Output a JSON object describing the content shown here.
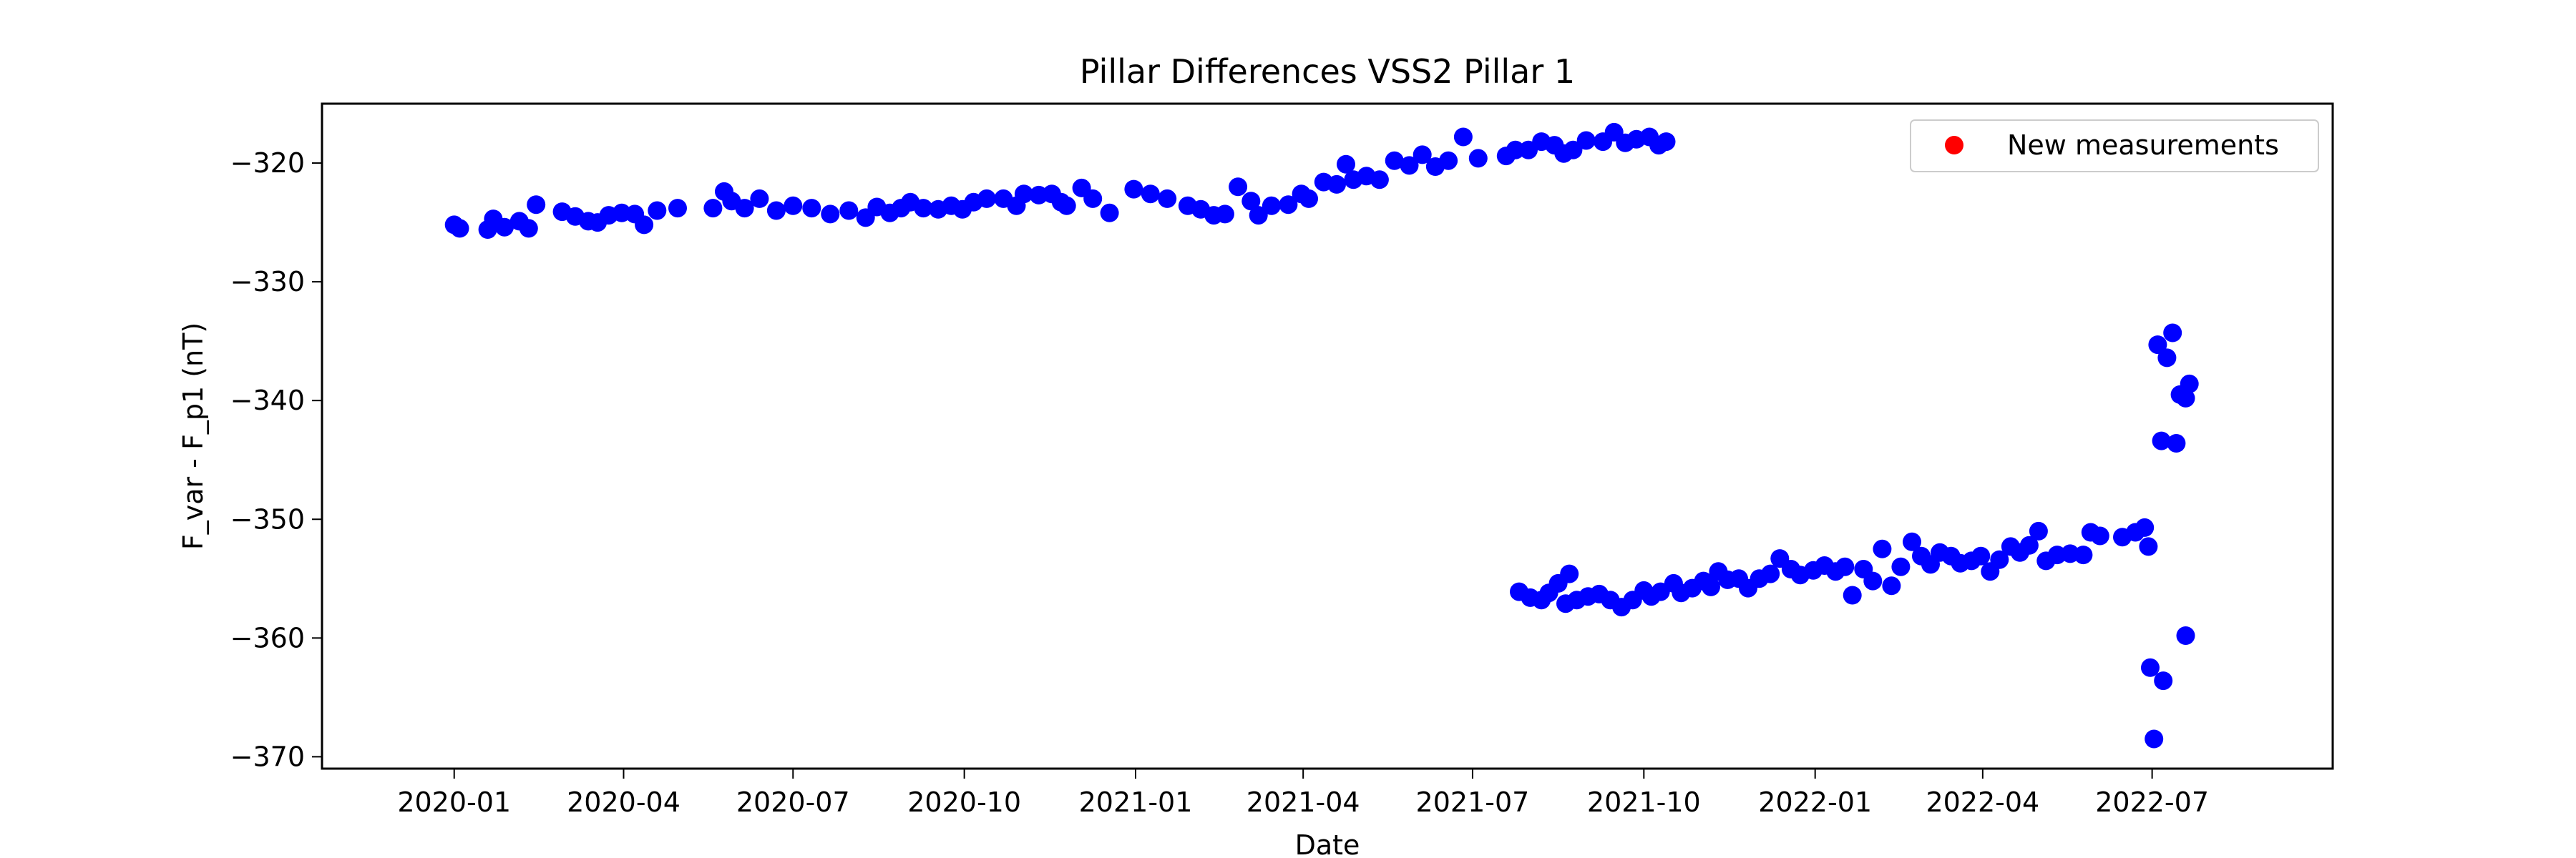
{
  "chart_data": {
    "type": "scatter",
    "title": "Pillar Differences VSS2 Pillar 1",
    "xlabel": "Date",
    "ylabel": "F_var - F_p1 (nT)",
    "xlim": [
      "2019-10-22",
      "2022-10-06"
    ],
    "ylim": [
      -371,
      -315
    ],
    "x_ticks": [
      "2020-01-01",
      "2020-04-01",
      "2020-07-01",
      "2020-10-01",
      "2021-01-01",
      "2021-04-01",
      "2021-07-01",
      "2021-10-01",
      "2022-01-01",
      "2022-04-01",
      "2022-07-01"
    ],
    "x_tick_labels": [
      "2020-01",
      "2020-04",
      "2020-07",
      "2020-10",
      "2021-01",
      "2021-04",
      "2021-07",
      "2021-10",
      "2022-01",
      "2022-04",
      "2022-07"
    ],
    "y_ticks": [
      -320,
      -330,
      -340,
      -350,
      -360,
      -370
    ],
    "y_tick_labels": [
      "−320",
      "−330",
      "−340",
      "−350",
      "−360",
      "−370"
    ],
    "grid": false,
    "legend": {
      "position": "top-right",
      "entries": [
        {
          "label": "New measurements",
          "color": "#ff0000"
        }
      ]
    },
    "series": [
      {
        "color": "#0000ff",
        "points": [
          [
            "2020-01-01",
            -325.2
          ],
          [
            "2020-01-04",
            -325.5
          ],
          [
            "2020-01-19",
            -325.6
          ],
          [
            "2020-01-22",
            -324.7
          ],
          [
            "2020-01-28",
            -325.4
          ],
          [
            "2020-02-05",
            -324.9
          ],
          [
            "2020-02-10",
            -325.5
          ],
          [
            "2020-02-14",
            -323.5
          ],
          [
            "2020-02-28",
            -324.1
          ],
          [
            "2020-03-06",
            -324.5
          ],
          [
            "2020-03-13",
            -324.9
          ],
          [
            "2020-03-18",
            -325.0
          ],
          [
            "2020-03-24",
            -324.4
          ],
          [
            "2020-03-31",
            -324.2
          ],
          [
            "2020-04-07",
            -324.3
          ],
          [
            "2020-04-12",
            -325.2
          ],
          [
            "2020-04-19",
            -324.0
          ],
          [
            "2020-04-30",
            -323.8
          ],
          [
            "2020-05-19",
            -323.8
          ],
          [
            "2020-05-25",
            -322.4
          ],
          [
            "2020-05-29",
            -323.2
          ],
          [
            "2020-06-05",
            -323.8
          ],
          [
            "2020-06-13",
            -323.0
          ],
          [
            "2020-06-22",
            -324.0
          ],
          [
            "2020-07-01",
            -323.6
          ],
          [
            "2020-07-11",
            -323.8
          ],
          [
            "2020-07-21",
            -324.3
          ],
          [
            "2020-07-31",
            -324.0
          ],
          [
            "2020-08-09",
            -324.6
          ],
          [
            "2020-08-15",
            -323.7
          ],
          [
            "2020-08-22",
            -324.2
          ],
          [
            "2020-08-28",
            -323.8
          ],
          [
            "2020-09-02",
            -323.3
          ],
          [
            "2020-09-09",
            -323.8
          ],
          [
            "2020-09-17",
            -323.9
          ],
          [
            "2020-09-24",
            -323.6
          ],
          [
            "2020-09-30",
            -323.9
          ],
          [
            "2020-10-06",
            -323.3
          ],
          [
            "2020-10-13",
            -323.0
          ],
          [
            "2020-10-22",
            -323.0
          ],
          [
            "2020-10-29",
            -323.6
          ],
          [
            "2020-11-02",
            -322.6
          ],
          [
            "2020-11-10",
            -322.7
          ],
          [
            "2020-11-17",
            -322.6
          ],
          [
            "2020-11-22",
            -323.3
          ],
          [
            "2020-11-25",
            -323.6
          ],
          [
            "2020-12-03",
            -322.1
          ],
          [
            "2020-12-09",
            -323.0
          ],
          [
            "2020-12-18",
            -324.2
          ],
          [
            "2020-12-31",
            -322.2
          ],
          [
            "2021-01-09",
            -322.6
          ],
          [
            "2021-01-18",
            -323.0
          ],
          [
            "2021-01-29",
            -323.6
          ],
          [
            "2021-02-05",
            -323.9
          ],
          [
            "2021-02-12",
            -324.4
          ],
          [
            "2021-02-18",
            -324.3
          ],
          [
            "2021-02-25",
            -322.0
          ],
          [
            "2021-03-04",
            -323.2
          ],
          [
            "2021-03-08",
            -324.4
          ],
          [
            "2021-03-15",
            -323.6
          ],
          [
            "2021-03-24",
            -323.5
          ],
          [
            "2021-03-31",
            -322.6
          ],
          [
            "2021-04-04",
            -323.0
          ],
          [
            "2021-04-12",
            -321.6
          ],
          [
            "2021-04-19",
            -321.8
          ],
          [
            "2021-04-24",
            -320.1
          ],
          [
            "2021-04-28",
            -321.4
          ],
          [
            "2021-05-05",
            -321.1
          ],
          [
            "2021-05-12",
            -321.4
          ],
          [
            "2021-05-20",
            -319.8
          ],
          [
            "2021-05-28",
            -320.2
          ],
          [
            "2021-06-04",
            -319.3
          ],
          [
            "2021-06-11",
            -320.3
          ],
          [
            "2021-06-18",
            -319.8
          ],
          [
            "2021-06-26",
            -317.8
          ],
          [
            "2021-07-04",
            -319.6
          ],
          [
            "2021-07-19",
            -319.4
          ],
          [
            "2021-07-24",
            -318.9
          ],
          [
            "2021-07-31",
            -318.9
          ],
          [
            "2021-08-07",
            -318.2
          ],
          [
            "2021-08-14",
            -318.5
          ],
          [
            "2021-08-19",
            -319.2
          ],
          [
            "2021-08-24",
            -318.9
          ],
          [
            "2021-08-31",
            -318.1
          ],
          [
            "2021-09-09",
            -318.2
          ],
          [
            "2021-09-15",
            -317.4
          ],
          [
            "2021-09-21",
            -318.3
          ],
          [
            "2021-09-27",
            -318.0
          ],
          [
            "2021-10-04",
            -317.8
          ],
          [
            "2021-10-09",
            -318.5
          ],
          [
            "2021-10-13",
            -318.2
          ]
        ]
      },
      {
        "color": "#0000ff",
        "points": [
          [
            "2021-07-26",
            -356.1
          ],
          [
            "2021-08-01",
            -356.6
          ],
          [
            "2021-08-07",
            -356.8
          ],
          [
            "2021-08-11",
            -356.2
          ],
          [
            "2021-08-16",
            -355.4
          ],
          [
            "2021-08-20",
            -357.1
          ],
          [
            "2021-08-22",
            -354.6
          ],
          [
            "2021-08-26",
            -356.8
          ],
          [
            "2021-09-01",
            -356.5
          ],
          [
            "2021-09-07",
            -356.3
          ],
          [
            "2021-09-13",
            -356.8
          ],
          [
            "2021-09-19",
            -357.4
          ],
          [
            "2021-09-25",
            -356.8
          ],
          [
            "2021-10-01",
            -356.0
          ],
          [
            "2021-10-05",
            -356.5
          ],
          [
            "2021-10-10",
            -356.1
          ],
          [
            "2021-10-17",
            -355.4
          ],
          [
            "2021-10-21",
            -356.2
          ],
          [
            "2021-10-27",
            -355.8
          ],
          [
            "2021-11-02",
            -355.2
          ],
          [
            "2021-11-06",
            -355.7
          ],
          [
            "2021-11-10",
            -354.4
          ],
          [
            "2021-11-15",
            -355.1
          ],
          [
            "2021-11-21",
            -355.0
          ],
          [
            "2021-11-26",
            -355.8
          ],
          [
            "2021-12-02",
            -355.0
          ],
          [
            "2021-12-08",
            -354.6
          ],
          [
            "2021-12-13",
            -353.3
          ],
          [
            "2021-12-19",
            -354.2
          ],
          [
            "2021-12-24",
            -354.7
          ],
          [
            "2021-12-31",
            -354.3
          ],
          [
            "2022-01-06",
            -353.9
          ],
          [
            "2022-01-12",
            -354.4
          ],
          [
            "2022-01-17",
            -354.0
          ],
          [
            "2022-01-21",
            -356.4
          ],
          [
            "2022-01-27",
            -354.2
          ],
          [
            "2022-02-01",
            -355.2
          ],
          [
            "2022-02-06",
            -352.5
          ],
          [
            "2022-02-11",
            -355.6
          ],
          [
            "2022-02-16",
            -354.0
          ],
          [
            "2022-02-22",
            -351.9
          ],
          [
            "2022-02-27",
            -353.1
          ],
          [
            "2022-03-04",
            -353.8
          ],
          [
            "2022-03-09",
            -352.8
          ],
          [
            "2022-03-15",
            -353.1
          ],
          [
            "2022-03-20",
            -353.7
          ],
          [
            "2022-03-26",
            -353.5
          ],
          [
            "2022-03-31",
            -353.1
          ],
          [
            "2022-04-05",
            -354.4
          ],
          [
            "2022-04-10",
            -353.4
          ],
          [
            "2022-04-16",
            -352.3
          ],
          [
            "2022-04-21",
            -352.8
          ],
          [
            "2022-04-26",
            -352.2
          ],
          [
            "2022-05-01",
            -351.0
          ],
          [
            "2022-05-05",
            -353.5
          ],
          [
            "2022-05-11",
            -353.0
          ],
          [
            "2022-05-18",
            -352.9
          ],
          [
            "2022-05-25",
            -353.0
          ],
          [
            "2022-05-29",
            -351.1
          ],
          [
            "2022-06-03",
            -351.4
          ],
          [
            "2022-06-15",
            -351.5
          ],
          [
            "2022-06-22",
            -351.1
          ],
          [
            "2022-06-27",
            -350.7
          ],
          [
            "2022-06-29",
            -352.3
          ]
        ]
      },
      {
        "color": "#0000ff",
        "points": [
          [
            "2022-06-30",
            -362.5
          ],
          [
            "2022-07-02",
            -368.5
          ],
          [
            "2022-07-04",
            -335.3
          ],
          [
            "2022-07-06",
            -343.4
          ],
          [
            "2022-07-07",
            -363.6
          ],
          [
            "2022-07-09",
            -336.4
          ],
          [
            "2022-07-12",
            -334.3
          ],
          [
            "2022-07-14",
            -343.6
          ],
          [
            "2022-07-16",
            -339.5
          ],
          [
            "2022-07-19",
            -359.8
          ],
          [
            "2022-07-19",
            -339.8
          ],
          [
            "2022-07-21",
            -338.6
          ]
        ]
      }
    ]
  }
}
